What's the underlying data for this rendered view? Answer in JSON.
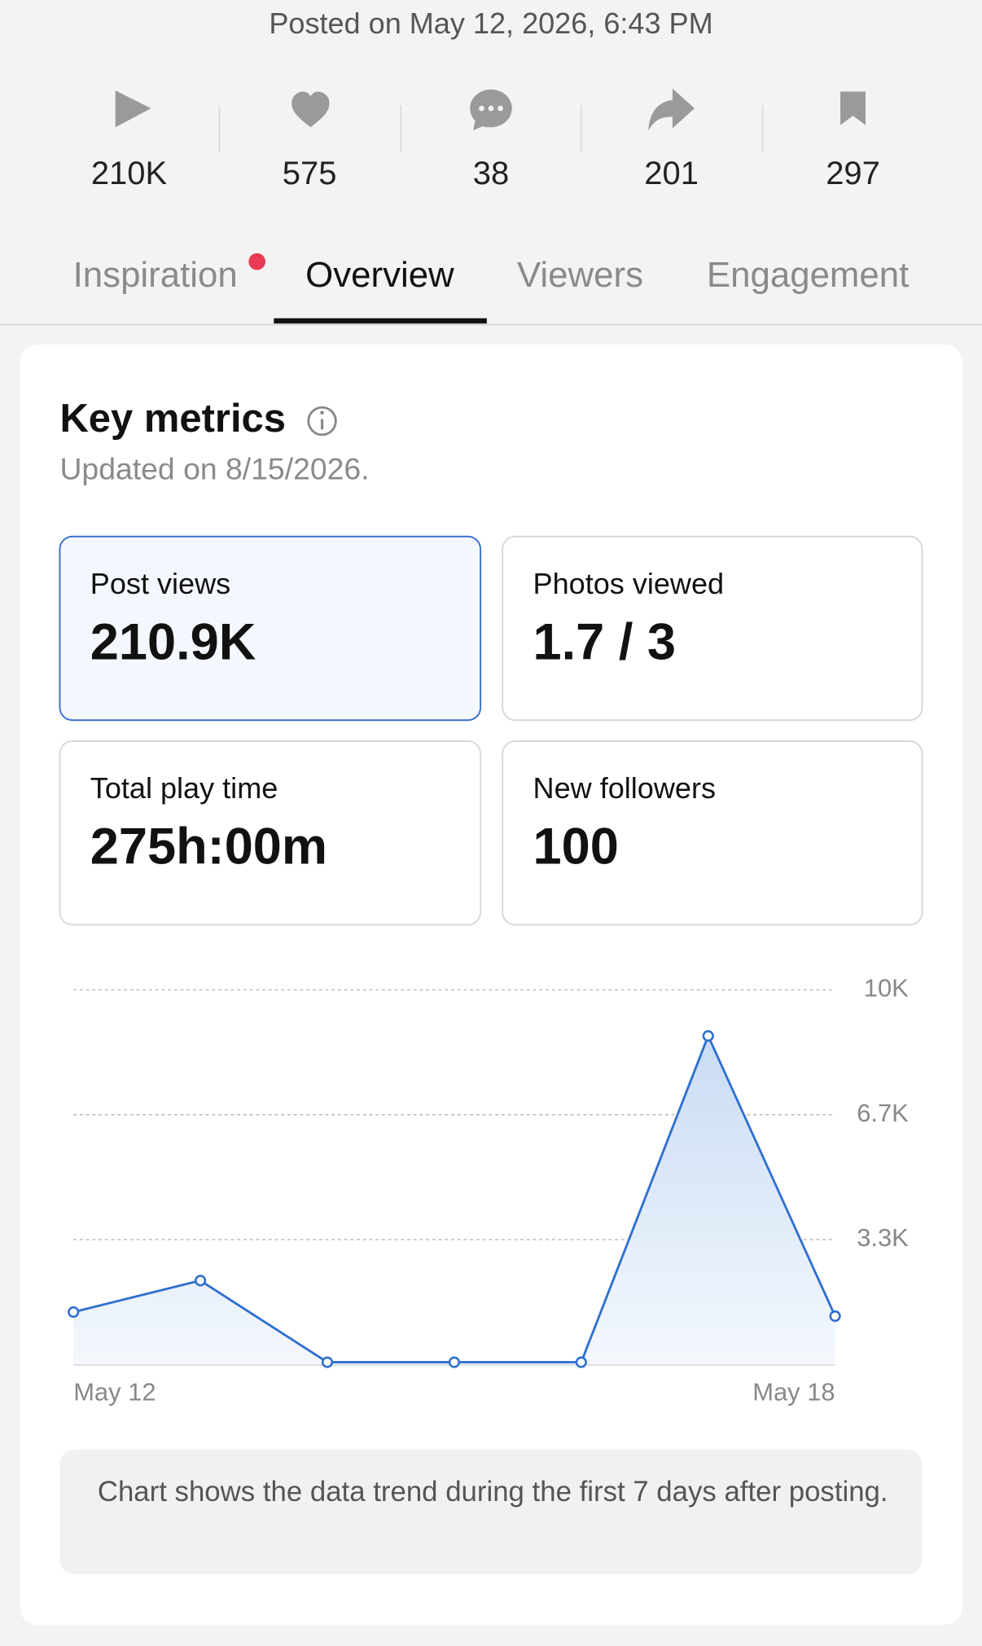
{
  "header": {
    "posted": "Posted on May 12, 2026, 6:43 PM"
  },
  "stats": [
    "210K",
    "575",
    "38",
    "201",
    "297"
  ],
  "tabs": [
    "Inspiration",
    "Overview",
    "Viewers",
    "Engagement"
  ],
  "card": {
    "title": "Key metrics",
    "updated": "Updated on 8/15/2026.",
    "metrics": [
      {
        "label": "Post views",
        "value": "210.9K"
      },
      {
        "label": "Photos viewed",
        "value": "1.7 / 3"
      },
      {
        "label": "Total play time",
        "value": "275h:00m"
      },
      {
        "label": "New followers",
        "value": "100"
      }
    ],
    "note": "Chart shows the data trend during the first 7 days after posting."
  },
  "chart_data": {
    "type": "line",
    "categories": [
      "May 12",
      null,
      null,
      null,
      null,
      null,
      "May 18"
    ],
    "values": [
      1400,
      2240,
      60,
      60,
      60,
      8770,
      1290
    ],
    "color": "#2f6fd0",
    "ylim": [
      0,
      10000
    ],
    "yticks": [
      {
        "value": 3333,
        "label": "3.3K"
      },
      {
        "value": 6667,
        "label": "6.7K"
      },
      {
        "value": 10000,
        "label": "10K"
      }
    ],
    "grid": true
  }
}
